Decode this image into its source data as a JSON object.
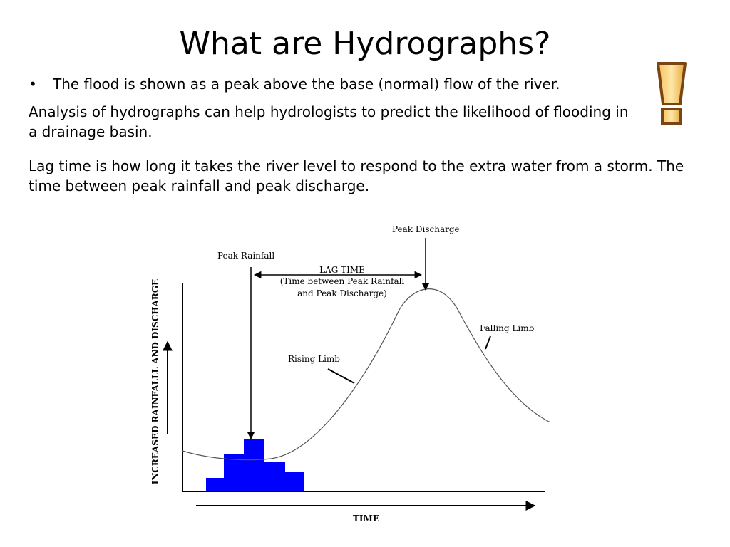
{
  "slide": {
    "title": "What are Hydrographs?",
    "bullet": "The flood is shown as a peak above the base (normal) flow of the river.",
    "paragraph1": "Analysis of hydrographs can help hydrologists to predict the likelihood of flooding in a drainage basin.",
    "paragraph2": "Lag time is how long it takes the river level to respond to the extra water from a storm.  The time between peak rainfall and peak discharge.",
    "icon": "exclamation-mark-icon"
  },
  "diagram": {
    "y_axis_label": "INCREASED RAINFALLL AND DISCHARGE",
    "x_axis_label": "TIME",
    "peak_rainfall": "Peak Rainfall",
    "peak_discharge": "Peak Discharge",
    "lag_time": "LAG TIME",
    "lag_time_desc1": "(Time between Peak Rainfall",
    "lag_time_desc2": "and Peak Discharge)",
    "rising_limb": "Rising Limb",
    "falling_limb": "Falling Limb",
    "rainfall_color": "#0000ff"
  }
}
